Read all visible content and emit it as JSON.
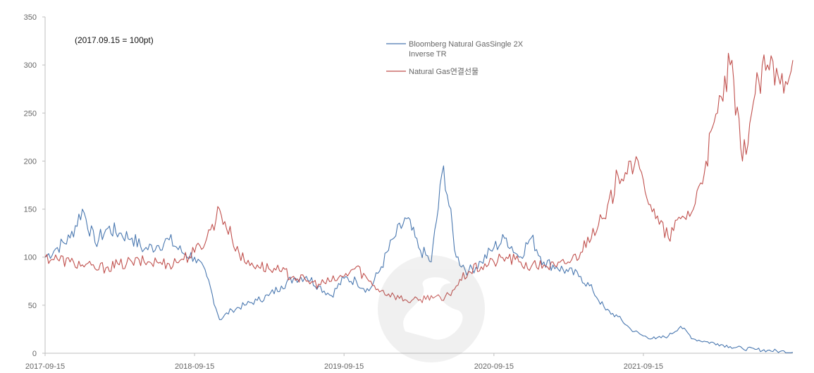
{
  "chart_data": {
    "type": "line",
    "annotation": "(2017.09.15  = 100pt)",
    "x_tick_labels": [
      "2017-09-15",
      "2018-09-15",
      "2019-09-15",
      "2020-09-15",
      "2021-09-15"
    ],
    "ylim": [
      0,
      350
    ],
    "y_ticks": [
      0,
      50,
      100,
      150,
      200,
      250,
      300,
      350
    ],
    "grid": false,
    "legend_position": "top-center",
    "x": [
      "2017-09-15",
      "2017-10-15",
      "2017-11-15",
      "2017-12-15",
      "2018-01-15",
      "2018-02-15",
      "2018-03-15",
      "2018-04-15",
      "2018-05-15",
      "2018-06-15",
      "2018-07-15",
      "2018-08-15",
      "2018-09-15",
      "2018-10-15",
      "2018-11-15",
      "2018-12-15",
      "2019-01-15",
      "2019-02-15",
      "2019-03-15",
      "2019-04-15",
      "2019-05-15",
      "2019-06-15",
      "2019-07-15",
      "2019-08-15",
      "2019-09-15",
      "2019-10-15",
      "2019-11-15",
      "2019-12-15",
      "2020-01-15",
      "2020-02-15",
      "2020-03-15",
      "2020-04-15",
      "2020-05-15",
      "2020-06-15",
      "2020-07-15",
      "2020-08-15",
      "2020-09-15",
      "2020-10-15",
      "2020-11-15",
      "2020-12-15",
      "2021-01-15",
      "2021-02-15",
      "2021-03-15",
      "2021-04-15",
      "2021-05-15",
      "2021-06-15",
      "2021-07-15",
      "2021-08-15",
      "2021-09-15",
      "2021-10-15",
      "2021-11-15",
      "2021-12-15",
      "2022-01-15",
      "2022-02-15",
      "2022-03-15",
      "2022-04-15",
      "2022-05-15",
      "2022-06-15",
      "2022-07-15",
      "2022-08-15",
      "2022-09-15"
    ],
    "series": [
      {
        "name": "Bloomberg Natural GasSingle 2X\nInverse TR",
        "color": "#4a78b0",
        "values": [
          100,
          110,
          120,
          150,
          115,
          130,
          125,
          120,
          108,
          112,
          118,
          105,
          100,
          80,
          35,
          45,
          50,
          55,
          60,
          70,
          78,
          80,
          70,
          60,
          78,
          75,
          65,
          90,
          120,
          140,
          110,
          95,
          195,
          100,
          85,
          95,
          110,
          120,
          100,
          120,
          95,
          90,
          85,
          80,
          65,
          45,
          38,
          25,
          18,
          15,
          18,
          28,
          15,
          12,
          10,
          7,
          5,
          4,
          3,
          2,
          1
        ]
      },
      {
        "name": "Natural Gas연결선물",
        "color": "#c0504d",
        "values": [
          100,
          98,
          95,
          92,
          88,
          90,
          92,
          95,
          95,
          95,
          93,
          98,
          105,
          120,
          150,
          120,
          95,
          92,
          88,
          85,
          80,
          75,
          72,
          75,
          80,
          90,
          75,
          65,
          60,
          55,
          55,
          60,
          55,
          70,
          85,
          90,
          95,
          100,
          95,
          90,
          92,
          90,
          95,
          105,
          130,
          140,
          185,
          200,
          180,
          140,
          120,
          140,
          150,
          200,
          250,
          300,
          200,
          270,
          300,
          280,
          305
        ]
      }
    ]
  }
}
